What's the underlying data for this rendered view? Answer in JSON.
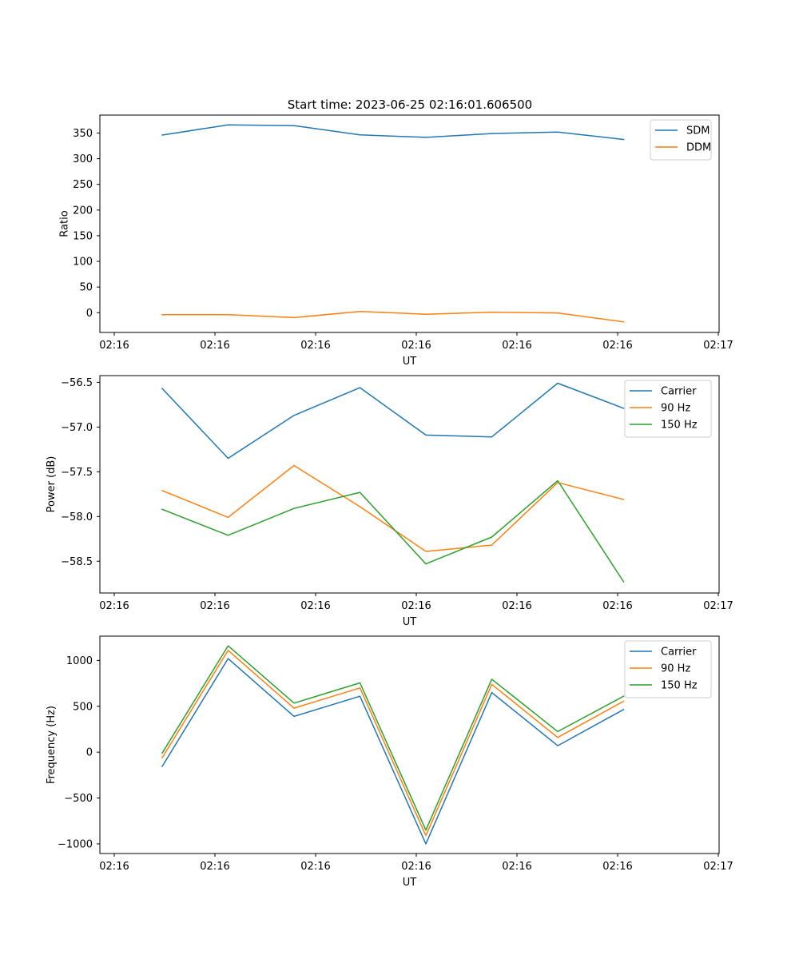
{
  "title": "Start time: 2023-06-25 02:16:01.606500",
  "colors": {
    "blue": "#1f77b4",
    "orange": "#ff7f0e",
    "green": "#2ca02c"
  },
  "chart_data": [
    {
      "type": "line",
      "title": "Start time: 2023-06-25 02:16:01.606500",
      "xlabel": "UT",
      "ylabel": "Ratio",
      "x_tick_labels": [
        "02:16",
        "02:16",
        "02:16",
        "02:16",
        "02:16",
        "02:16",
        "02:16",
        "02:17"
      ],
      "y_ticks": [
        0,
        50,
        100,
        150,
        200,
        250,
        300,
        350
      ],
      "ylim": [
        -38.5,
        385
      ],
      "legend": "top-right",
      "series": [
        {
          "name": "SDM",
          "color": "#1f77b4",
          "values": [
            346,
            366,
            364.5,
            346.5,
            341.5,
            349,
            352,
            337.5
          ]
        },
        {
          "name": "DDM",
          "color": "#ff7f0e",
          "values": [
            -4,
            -4,
            -9.5,
            2.5,
            -3,
            1,
            -0.5,
            -18
          ]
        }
      ]
    },
    {
      "type": "line",
      "xlabel": "UT",
      "ylabel": "Power (dB)",
      "x_tick_labels": [
        "02:16",
        "02:16",
        "02:16",
        "02:16",
        "02:16",
        "02:16",
        "02:16",
        "02:17"
      ],
      "y_ticks": [
        -58.5,
        -58.0,
        -57.5,
        -57.0,
        -56.5
      ],
      "y_tick_labels": [
        "−58.5",
        "−58.0",
        "−57.5",
        "−57.0",
        "−56.5"
      ],
      "ylim": [
        -58.855,
        -56.425
      ],
      "legend": "top-right",
      "series": [
        {
          "name": "Carrier",
          "color": "#1f77b4",
          "values": [
            -56.57,
            -57.35,
            -56.87,
            -56.56,
            -57.09,
            -57.11,
            -56.51,
            -56.79
          ]
        },
        {
          "name": "90 Hz",
          "color": "#ff7f0e",
          "values": [
            -57.71,
            -58.01,
            -57.43,
            -57.89,
            -58.39,
            -58.32,
            -57.62,
            -57.81
          ]
        },
        {
          "name": "150 Hz",
          "color": "#2ca02c",
          "values": [
            -57.92,
            -58.21,
            -57.91,
            -57.73,
            -58.53,
            -58.23,
            -57.6,
            -58.73
          ]
        }
      ]
    },
    {
      "type": "line",
      "xlabel": "UT",
      "ylabel": "Frequency (Hz)",
      "x_tick_labels": [
        "02:16",
        "02:16",
        "02:16",
        "02:16",
        "02:16",
        "02:16",
        "02:16",
        "02:17"
      ],
      "y_ticks": [
        -1000,
        -500,
        0,
        500,
        1000
      ],
      "y_tick_labels": [
        "−1000",
        "−500",
        "0",
        "500",
        "1000"
      ],
      "ylim": [
        -1105,
        1265
      ],
      "legend": "top-right",
      "series": [
        {
          "name": "Carrier",
          "color": "#1f77b4",
          "values": [
            -155,
            1020,
            390,
            610,
            -1000,
            650,
            70,
            465
          ]
        },
        {
          "name": "90 Hz",
          "color": "#ff7f0e",
          "values": [
            -60,
            1110,
            480,
            700,
            -910,
            740,
            160,
            555
          ]
        },
        {
          "name": "150 Hz",
          "color": "#2ca02c",
          "values": [
            -10,
            1160,
            535,
            755,
            -850,
            795,
            225,
            610
          ]
        }
      ]
    }
  ]
}
